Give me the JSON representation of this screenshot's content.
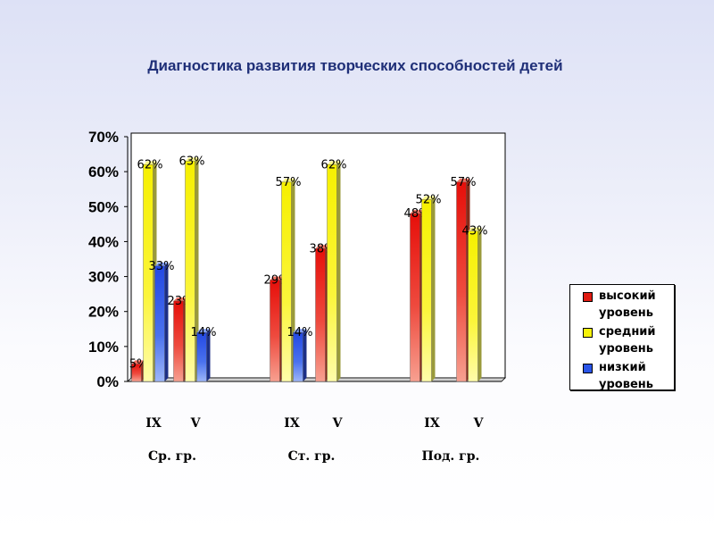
{
  "chart_data": {
    "type": "bar",
    "title": "Диагностика развития творческих способностей детей",
    "xlabel": "",
    "ylabel": "",
    "ylim": [
      0,
      70
    ],
    "y_ticks": [
      "0%",
      "10%",
      "20%",
      "30%",
      "40%",
      "50%",
      "60%",
      "70%"
    ],
    "grid": false,
    "legend_position": "right",
    "groups": [
      {
        "name": "Ср. гр.",
        "categories": [
          {
            "label": "IX",
            "values": [
              5,
              62,
              33
            ],
            "labels": [
              "5%",
              "62%",
              "33%"
            ]
          },
          {
            "label": "V",
            "values": [
              23,
              63,
              14
            ],
            "labels": [
              "23%",
              "63%",
              "14%"
            ]
          }
        ]
      },
      {
        "name": "Ст. гр.",
        "categories": [
          {
            "label": "IX",
            "values": [
              29,
              57,
              14
            ],
            "labels": [
              "29%",
              "57%",
              "14%"
            ]
          },
          {
            "label": "V",
            "values": [
              38,
              62,
              null
            ],
            "labels": [
              "38%",
              "62%",
              ""
            ]
          }
        ]
      },
      {
        "name": "Под. гр.",
        "categories": [
          {
            "label": "IX",
            "values": [
              48,
              52,
              null
            ],
            "labels": [
              "48%",
              "52%",
              ""
            ]
          },
          {
            "label": "V",
            "values": [
              57,
              43,
              null
            ],
            "labels": [
              "57%",
              "43%",
              ""
            ]
          }
        ]
      }
    ],
    "series": [
      {
        "name": "высокий уровень",
        "color": "#e01b12"
      },
      {
        "name": "средний уровень",
        "color": "#f5f20a"
      },
      {
        "name": "низкий уровень",
        "color": "#2a55e8"
      }
    ]
  }
}
